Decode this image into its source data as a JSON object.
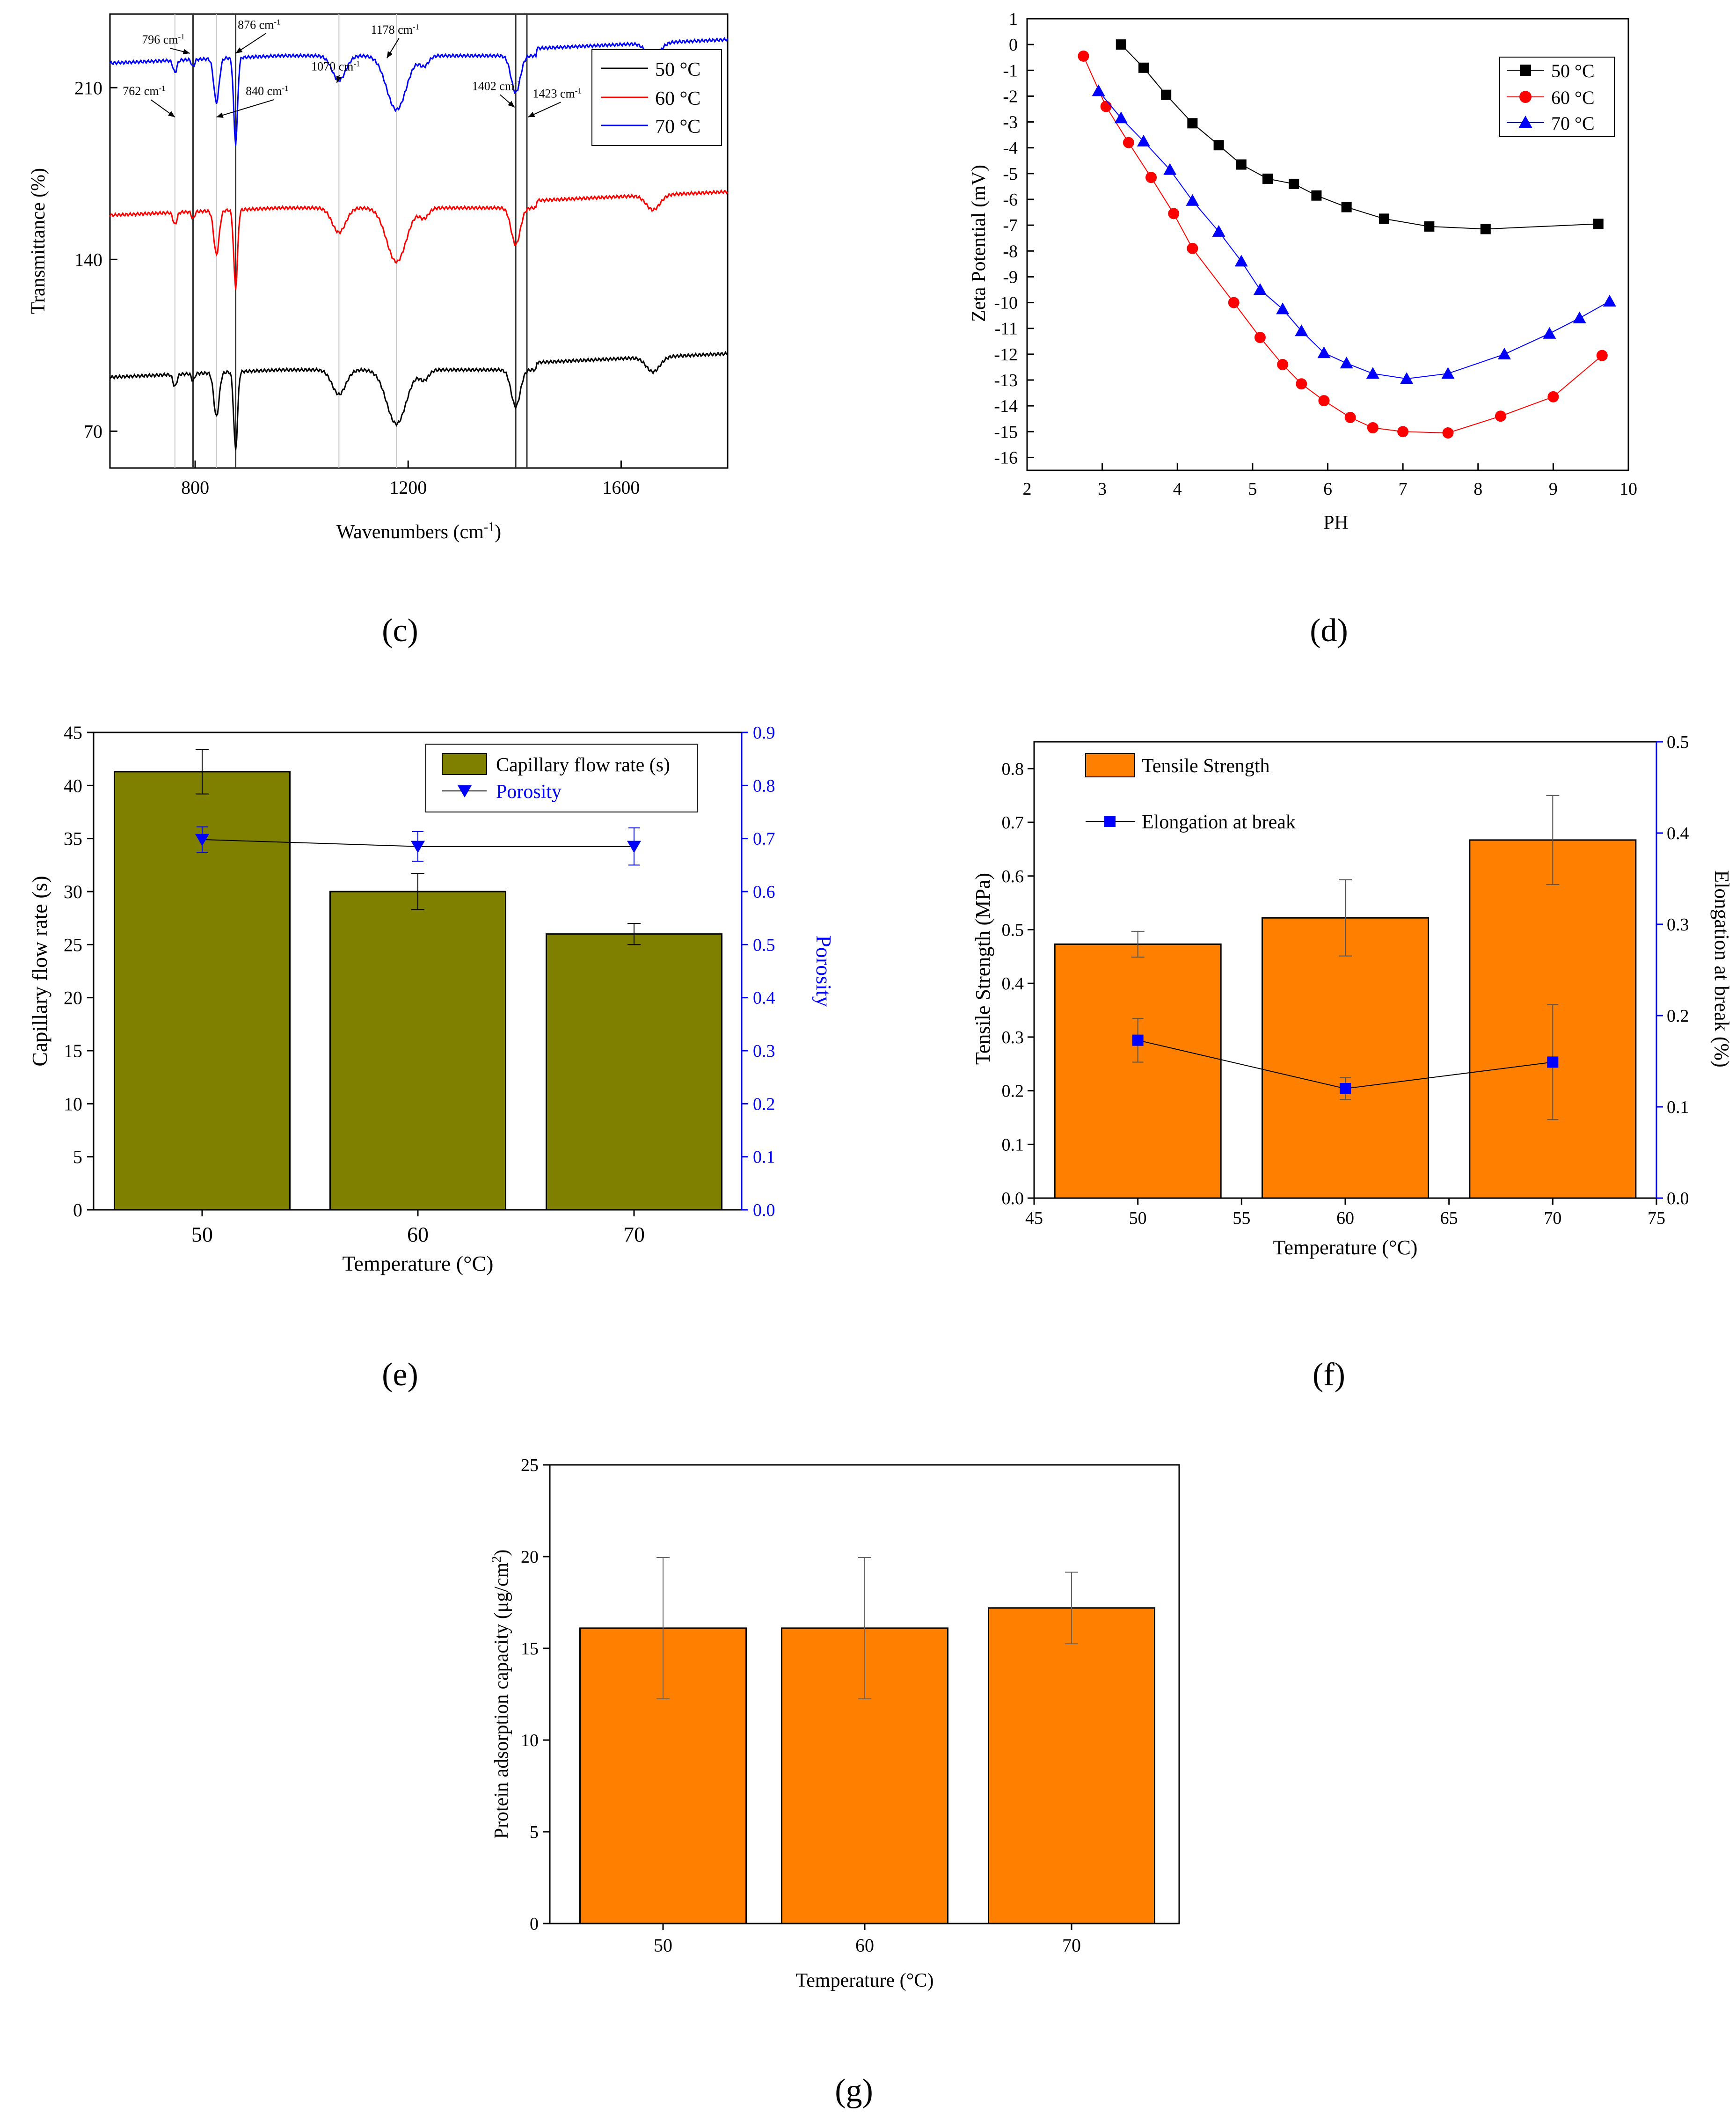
{
  "captions": {
    "c": "(c)",
    "d": "(d)",
    "e": "(e)",
    "f": "(f)",
    "g": "(g)"
  },
  "colors": {
    "black": "#000000",
    "red": "#ff0000",
    "blue": "#0000ff",
    "olive": "#808000",
    "orange": "#ff8000",
    "grey": "#c8c8c8"
  },
  "chart_data": [
    {
      "id": "c",
      "type": "line",
      "xlabel": "Wavenumbers (cm-1)",
      "ylabel": "Transmittance (%)",
      "xlim": [
        640,
        1800
      ],
      "ylim": [
        55,
        240
      ],
      "xticks": [
        "800",
        "1200",
        "1600"
      ],
      "xtick_values": [
        800,
        1200,
        1600
      ],
      "yticks": [
        "70",
        "140",
        "210"
      ],
      "ytick_values": [
        70,
        140,
        210
      ],
      "legend": {
        "position": "top-right",
        "entries": [
          "50 °C",
          "60 °C",
          "70 °C"
        ]
      },
      "baselines": [
        95,
        161,
        223
      ],
      "series": [
        {
          "name": "50 °C",
          "color": "#000000"
        },
        {
          "name": "60 °C",
          "color": "#ff0000"
        },
        {
          "name": "70 °C",
          "color": "#0000ff"
        }
      ],
      "peaks": [
        {
          "x": 762,
          "depth": 5,
          "width": 5
        },
        {
          "x": 796,
          "depth": 3,
          "width": 4
        },
        {
          "x": 840,
          "depth": 18,
          "width": 7
        },
        {
          "x": 876,
          "depth": 32,
          "width": 5
        },
        {
          "x": 1070,
          "depth": 10,
          "width": 18
        },
        {
          "x": 1178,
          "depth": 22,
          "width": 26
        },
        {
          "x": 1230,
          "depth": 4,
          "width": 12
        },
        {
          "x": 1402,
          "depth": 15,
          "width": 12
        },
        {
          "x": 1660,
          "depth": 6,
          "width": 18
        }
      ],
      "marker_lines": [
        762,
        796,
        840,
        876,
        1070,
        1178,
        1402,
        1423
      ],
      "annotations": [
        {
          "text": "796 cm",
          "sup": "-1",
          "x": 700,
          "y": 228
        },
        {
          "text": "876 cm",
          "sup": "-1",
          "x": 880,
          "y": 234
        },
        {
          "text": "1178 cm",
          "sup": "-1",
          "x": 1130,
          "y": 232
        },
        {
          "text": "762 cm",
          "sup": "-1",
          "x": 664,
          "y": 207
        },
        {
          "text": "840 cm",
          "sup": "-1",
          "x": 895,
          "y": 207
        },
        {
          "text": "1070 cm",
          "sup": "-1",
          "x": 1018,
          "y": 217
        },
        {
          "text": "1402 cm",
          "sup": "-1",
          "x": 1320,
          "y": 209
        },
        {
          "text": "1423 cm",
          "sup": "-1",
          "x": 1434,
          "y": 206
        }
      ]
    },
    {
      "id": "d",
      "type": "line",
      "xlabel": "PH",
      "ylabel": "Zeta Potential (mV)",
      "xlim": [
        2,
        10
      ],
      "ylim": [
        -16.5,
        1
      ],
      "xticks": [
        "2",
        "3",
        "4",
        "5",
        "6",
        "7",
        "8",
        "9",
        "10"
      ],
      "xtick_values": [
        2,
        3,
        4,
        5,
        6,
        7,
        8,
        9,
        10
      ],
      "yticks": [
        "1",
        "0",
        "-1",
        "-2",
        "-3",
        "-4",
        "-5",
        "-6",
        "-7",
        "-8",
        "-9",
        "-10",
        "-11",
        "-12",
        "-13",
        "-14",
        "-15",
        "-16"
      ],
      "ytick_values": [
        1,
        0,
        -1,
        -2,
        -3,
        -4,
        -5,
        -6,
        -7,
        -8,
        -9,
        -10,
        -11,
        -12,
        -13,
        -14,
        -15,
        -16
      ],
      "legend": {
        "position": "top-right"
      },
      "series": [
        {
          "name": "50 °C",
          "color": "#000000",
          "marker": "square",
          "x": [
            3.25,
            3.55,
            3.85,
            4.2,
            4.55,
            4.85,
            5.2,
            5.55,
            5.85,
            6.25,
            6.75,
            7.35,
            8.1,
            9.6
          ],
          "y": [
            0,
            -0.9,
            -1.95,
            -3.05,
            -3.9,
            -4.65,
            -5.2,
            -5.4,
            -5.85,
            -6.3,
            -6.75,
            -7.05,
            -7.15,
            -6.95
          ]
        },
        {
          "name": "60 °C",
          "color": "#ff0000",
          "marker": "circle",
          "x": [
            2.75,
            3.05,
            3.35,
            3.65,
            3.95,
            4.2,
            4.75,
            5.1,
            5.4,
            5.65,
            5.95,
            6.3,
            6.6,
            7.0,
            7.6,
            8.3,
            9.0,
            9.65
          ],
          "y": [
            -0.45,
            -2.4,
            -3.8,
            -5.15,
            -6.55,
            -7.9,
            -10.0,
            -11.35,
            -12.4,
            -13.15,
            -13.8,
            -14.45,
            -14.85,
            -15.0,
            -15.05,
            -14.4,
            -13.65,
            -12.05
          ]
        },
        {
          "name": "70 °C",
          "color": "#0000ff",
          "marker": "triangle",
          "x": [
            2.95,
            3.25,
            3.55,
            3.9,
            4.2,
            4.55,
            4.85,
            5.1,
            5.4,
            5.65,
            5.95,
            6.25,
            6.6,
            7.05,
            7.6,
            8.35,
            8.95,
            9.35,
            9.75
          ],
          "y": [
            -1.8,
            -2.85,
            -3.75,
            -4.85,
            -6.05,
            -7.25,
            -8.4,
            -9.5,
            -10.25,
            -11.1,
            -11.95,
            -12.35,
            -12.75,
            -12.95,
            -12.75,
            -12.0,
            -11.2,
            -10.6,
            -9.95
          ]
        }
      ]
    },
    {
      "id": "e",
      "type": "bar",
      "xlabel": "Temperature (°C)",
      "ylabel": "Capillary flow rate (s)",
      "y2label": "Porosity",
      "categories": [
        "50",
        "60",
        "70"
      ],
      "ylim": [
        0,
        45
      ],
      "yticks": [
        "0",
        "5",
        "10",
        "15",
        "20",
        "25",
        "30",
        "35",
        "40",
        "45"
      ],
      "ytick_values": [
        0,
        5,
        10,
        15,
        20,
        25,
        30,
        35,
        40,
        45
      ],
      "y2lim": [
        0,
        0.9
      ],
      "y2ticks": [
        "0.0",
        "0.1",
        "0.2",
        "0.3",
        "0.4",
        "0.5",
        "0.6",
        "0.7",
        "0.8",
        "0.9"
      ],
      "y2tick_values": [
        0,
        0.1,
        0.2,
        0.3,
        0.4,
        0.5,
        0.6,
        0.7,
        0.8,
        0.9
      ],
      "legend": {
        "position": "top-right"
      },
      "bars": {
        "name": "Capillary flow rate (s)",
        "values": [
          41.3,
          30.0,
          26.0
        ],
        "errors": [
          2.1,
          1.7,
          1.0
        ],
        "color": "#808000"
      },
      "line": {
        "name": "Porosity",
        "values": [
          0.698,
          0.685,
          0.685
        ],
        "errors": [
          0.024,
          0.028,
          0.035
        ],
        "color": "#0000ff"
      }
    },
    {
      "id": "f",
      "type": "bar",
      "xlabel": "Temperature (°C)",
      "ylabel": "Tensile Strength (MPa)",
      "y2label": "Elongation at break (%)",
      "xlim": [
        45,
        75
      ],
      "xticks": [
        "45",
        "50",
        "55",
        "60",
        "65",
        "70",
        "75"
      ],
      "xtick_values": [
        45,
        50,
        55,
        60,
        65,
        70,
        75
      ],
      "ylim": [
        0,
        0.85
      ],
      "yticks": [
        "0.0",
        "0.1",
        "0.2",
        "0.3",
        "0.4",
        "0.5",
        "0.6",
        "0.7",
        "0.8"
      ],
      "ytick_values": [
        0,
        0.1,
        0.2,
        0.3,
        0.4,
        0.5,
        0.6,
        0.7,
        0.8
      ],
      "y2lim": [
        0,
        0.5
      ],
      "y2ticks": [
        "0.0",
        "0.1",
        "0.2",
        "0.3",
        "0.4",
        "0.5"
      ],
      "y2tick_values": [
        0,
        0.1,
        0.2,
        0.3,
        0.4,
        0.5
      ],
      "legend": {
        "position": "top-left"
      },
      "bars": {
        "name": "Tensile Strength",
        "x": [
          50,
          60,
          70
        ],
        "values": [
          0.473,
          0.522,
          0.667
        ],
        "errors": [
          0.024,
          0.071,
          0.083
        ],
        "color": "#ff8000"
      },
      "line": {
        "name": "Elongation at break",
        "x": [
          50,
          60,
          70
        ],
        "values": [
          0.173,
          0.12,
          0.149
        ],
        "errors": [
          0.024,
          0.012,
          0.063
        ],
        "color": "#0000ff"
      }
    },
    {
      "id": "g",
      "type": "bar",
      "xlabel": "Temperature (°C)",
      "ylabel": "Protein adsorption capacity (μg/cm",
      "ylabel_sup": "2",
      "ylabel_end": ")",
      "categories": [
        "50",
        "60",
        "70"
      ],
      "ylim": [
        0,
        25
      ],
      "yticks": [
        "0",
        "5",
        "10",
        "15",
        "20",
        "25"
      ],
      "ytick_values": [
        0,
        5,
        10,
        15,
        20,
        25
      ],
      "bars": {
        "values": [
          16.1,
          16.1,
          17.2
        ],
        "errors": [
          3.85,
          3.85,
          1.95
        ],
        "color": "#ff8000"
      }
    }
  ]
}
